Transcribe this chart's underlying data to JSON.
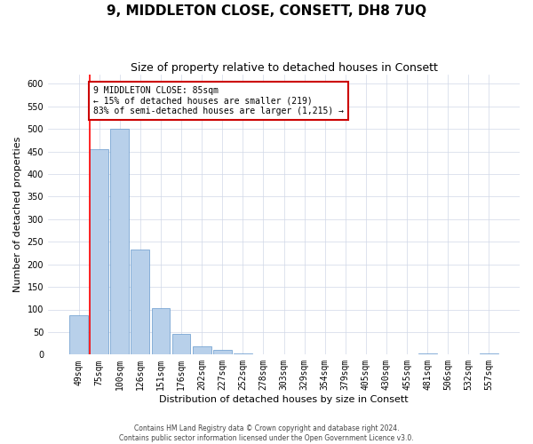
{
  "title": "9, MIDDLETON CLOSE, CONSETT, DH8 7UQ",
  "subtitle": "Size of property relative to detached houses in Consett",
  "xlabel": "Distribution of detached houses by size in Consett",
  "ylabel": "Number of detached properties",
  "bar_labels": [
    "49sqm",
    "75sqm",
    "100sqm",
    "126sqm",
    "151sqm",
    "176sqm",
    "202sqm",
    "227sqm",
    "252sqm",
    "278sqm",
    "303sqm",
    "329sqm",
    "354sqm",
    "379sqm",
    "405sqm",
    "430sqm",
    "455sqm",
    "481sqm",
    "506sqm",
    "532sqm",
    "557sqm"
  ],
  "bar_values": [
    88,
    455,
    500,
    233,
    103,
    45,
    18,
    10,
    2,
    0,
    0,
    0,
    0,
    0,
    0,
    0,
    0,
    2,
    0,
    0,
    2
  ],
  "bar_color": "#b8d0ea",
  "bar_edge_color": "#6699cc",
  "annotation_title": "9 MIDDLETON CLOSE: 85sqm",
  "annotation_line1": "← 15% of detached houses are smaller (219)",
  "annotation_line2": "83% of semi-detached houses are larger (1,215) →",
  "annotation_box_color": "#ffffff",
  "annotation_box_edge": "#cc0000",
  "ylim": [
    0,
    620
  ],
  "yticks": [
    0,
    50,
    100,
    150,
    200,
    250,
    300,
    350,
    400,
    450,
    500,
    550,
    600
  ],
  "footer_line1": "Contains HM Land Registry data © Crown copyright and database right 2024.",
  "footer_line2": "Contains public sector information licensed under the Open Government Licence v3.0.",
  "title_fontsize": 11,
  "subtitle_fontsize": 9,
  "axis_label_fontsize": 8,
  "tick_fontsize": 7,
  "annotation_fontsize": 7,
  "background_color": "#ffffff",
  "grid_color": "#d0d8e8"
}
